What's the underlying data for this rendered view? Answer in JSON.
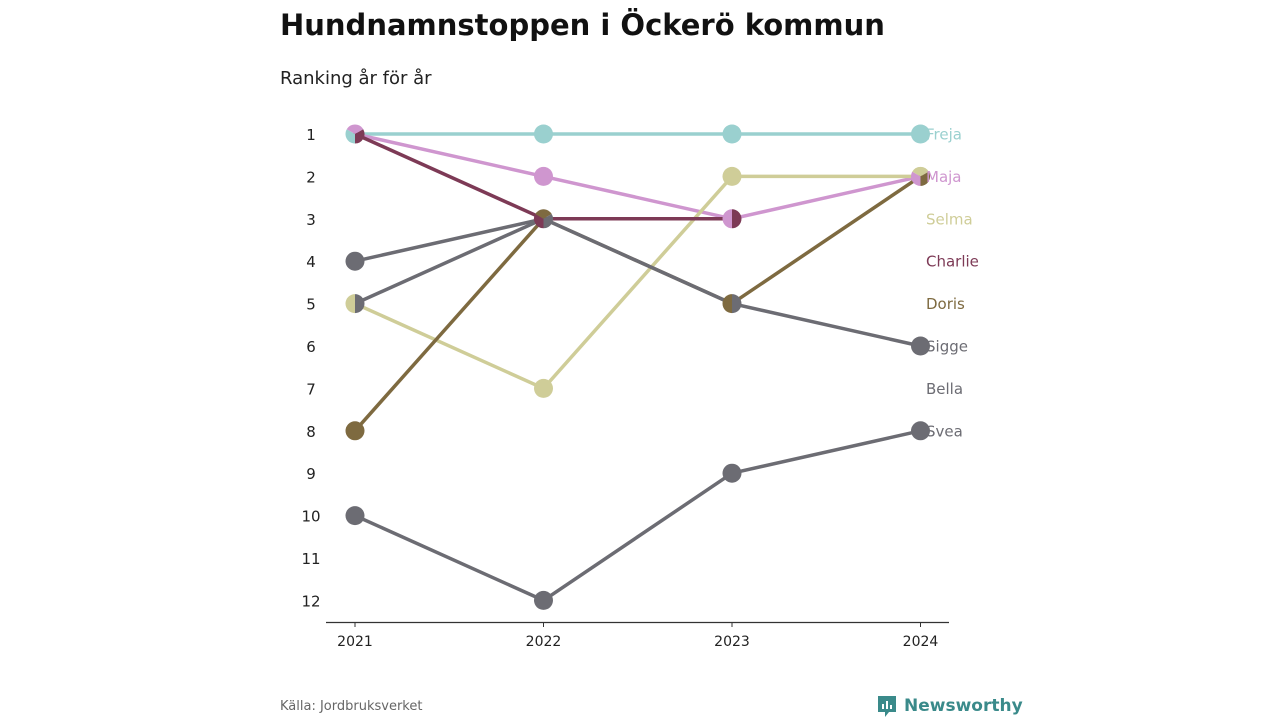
{
  "title": "Hundnamnstoppen i Öckerö kommun",
  "subtitle": "Ranking år för år",
  "source": "Källa: Jordbruksverket",
  "brand": {
    "name": "Newsworthy",
    "icon": "newsworthy-logo-icon",
    "color": "#3a8a8a"
  },
  "chart_data": {
    "type": "line",
    "x": [
      "2021",
      "2022",
      "2023",
      "2024"
    ],
    "y_ticks": [
      1,
      2,
      3,
      4,
      5,
      6,
      7,
      8,
      9,
      10,
      11,
      12
    ],
    "y_reversed": true,
    "ylim": [
      1,
      12
    ],
    "grid": false,
    "legend": "labels at right end of lines",
    "series": [
      {
        "name": "Freja",
        "color": "#9ad0cf",
        "values": [
          1,
          1,
          1,
          1
        ]
      },
      {
        "name": "Maja",
        "color": "#cf96cf",
        "values": [
          1,
          2,
          3,
          2
        ]
      },
      {
        "name": "Selma",
        "color": "#cfcd98",
        "values": [
          5,
          7,
          2,
          2
        ]
      },
      {
        "name": "Charlie",
        "color": "#7d3a56",
        "values": [
          1,
          3,
          3,
          null
        ]
      },
      {
        "name": "Doris",
        "color": "#7e6a40",
        "values": [
          8,
          3,
          5,
          2
        ]
      },
      {
        "name": "Sigge",
        "color": "#6c6c73",
        "values": [
          4,
          3,
          5,
          6
        ]
      },
      {
        "name": "Bella",
        "color": "#6c6c73",
        "values": [
          5,
          3,
          null,
          null
        ]
      },
      {
        "name": "Svea",
        "color": "#6c6c73",
        "values": [
          10,
          12,
          9,
          8
        ]
      }
    ],
    "end_labels": [
      {
        "name": "Freja",
        "rank": 1
      },
      {
        "name": "Maja",
        "rank": 2
      },
      {
        "name": "Selma",
        "rank": 3
      },
      {
        "name": "Charlie",
        "rank": 4
      },
      {
        "name": "Doris",
        "rank": 5
      },
      {
        "name": "Sigge",
        "rank": 6
      },
      {
        "name": "Bella",
        "rank": 7
      },
      {
        "name": "Svea",
        "rank": 8
      }
    ]
  }
}
